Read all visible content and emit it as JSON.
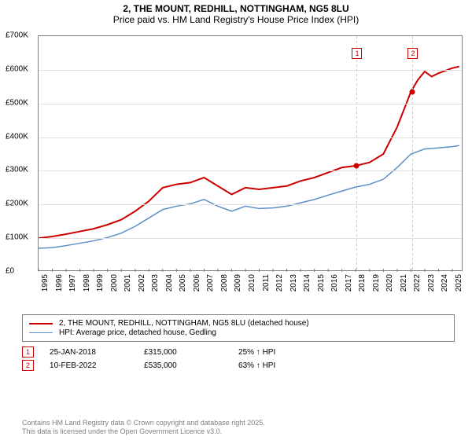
{
  "title": "2, THE MOUNT, REDHILL, NOTTINGHAM, NG5 8LU",
  "subtitle": "Price paid vs. HM Land Registry's House Price Index (HPI)",
  "chart": {
    "type": "line",
    "background_color": "#ffffff",
    "grid_color": "#e0e0e0",
    "border_color": "#808080",
    "x_years": [
      1995,
      1996,
      1997,
      1998,
      1999,
      2000,
      2001,
      2002,
      2003,
      2004,
      2005,
      2006,
      2007,
      2008,
      2009,
      2010,
      2011,
      2012,
      2013,
      2014,
      2015,
      2016,
      2017,
      2018,
      2019,
      2020,
      2021,
      2022,
      2023,
      2024,
      2025
    ],
    "xlim": [
      1995,
      2025.8
    ],
    "ylim": [
      0,
      700000
    ],
    "y_ticks": [
      0,
      100000,
      200000,
      300000,
      400000,
      500000,
      600000,
      700000
    ],
    "y_tick_labels": [
      "£0",
      "£100K",
      "£200K",
      "£300K",
      "£400K",
      "£500K",
      "£600K",
      "£700K"
    ],
    "series": [
      {
        "name": "price_paid",
        "color": "#cc0000",
        "width": 2,
        "points": [
          [
            1995,
            100000
          ],
          [
            1996,
            105000
          ],
          [
            1997,
            112000
          ],
          [
            1998,
            120000
          ],
          [
            1999,
            128000
          ],
          [
            2000,
            140000
          ],
          [
            2001,
            155000
          ],
          [
            2002,
            180000
          ],
          [
            2003,
            210000
          ],
          [
            2004,
            250000
          ],
          [
            2005,
            260000
          ],
          [
            2006,
            265000
          ],
          [
            2007,
            280000
          ],
          [
            2008,
            255000
          ],
          [
            2009,
            230000
          ],
          [
            2010,
            250000
          ],
          [
            2011,
            245000
          ],
          [
            2012,
            250000
          ],
          [
            2013,
            255000
          ],
          [
            2014,
            270000
          ],
          [
            2015,
            280000
          ],
          [
            2016,
            295000
          ],
          [
            2017,
            310000
          ],
          [
            2018,
            315000
          ],
          [
            2019,
            325000
          ],
          [
            2020,
            350000
          ],
          [
            2021,
            430000
          ],
          [
            2022,
            535000
          ],
          [
            2022.5,
            570000
          ],
          [
            2023,
            595000
          ],
          [
            2023.5,
            580000
          ],
          [
            2024,
            590000
          ],
          [
            2025,
            605000
          ],
          [
            2025.5,
            610000
          ]
        ]
      },
      {
        "name": "hpi",
        "color": "#5b8fc7",
        "width": 1.5,
        "points": [
          [
            1995,
            70000
          ],
          [
            1996,
            72000
          ],
          [
            1997,
            78000
          ],
          [
            1998,
            85000
          ],
          [
            1999,
            92000
          ],
          [
            2000,
            102000
          ],
          [
            2001,
            115000
          ],
          [
            2002,
            135000
          ],
          [
            2003,
            160000
          ],
          [
            2004,
            185000
          ],
          [
            2005,
            195000
          ],
          [
            2006,
            202000
          ],
          [
            2007,
            215000
          ],
          [
            2008,
            195000
          ],
          [
            2009,
            180000
          ],
          [
            2010,
            195000
          ],
          [
            2011,
            188000
          ],
          [
            2012,
            190000
          ],
          [
            2013,
            195000
          ],
          [
            2014,
            205000
          ],
          [
            2015,
            215000
          ],
          [
            2016,
            228000
          ],
          [
            2017,
            240000
          ],
          [
            2018,
            252000
          ],
          [
            2019,
            260000
          ],
          [
            2020,
            275000
          ],
          [
            2021,
            310000
          ],
          [
            2022,
            350000
          ],
          [
            2023,
            365000
          ],
          [
            2024,
            368000
          ],
          [
            2025,
            372000
          ],
          [
            2025.5,
            375000
          ]
        ]
      }
    ],
    "sale_markers": [
      {
        "label": "1",
        "year": 2018.07,
        "price": 315000,
        "marker_y": 15
      },
      {
        "label": "2",
        "year": 2022.12,
        "price": 535000,
        "marker_y": 15
      }
    ],
    "marker_border": "#cc0000",
    "marker_fill": "#cc0000",
    "marker_line_color": "#cccccc"
  },
  "legend": {
    "items": [
      {
        "color": "#cc0000",
        "width": 2,
        "label": "2, THE MOUNT, REDHILL, NOTTINGHAM, NG5 8LU (detached house)"
      },
      {
        "color": "#5b8fc7",
        "width": 1.5,
        "label": "HPI: Average price, detached house, Gedling"
      }
    ]
  },
  "sales": [
    {
      "badge": "1",
      "date": "25-JAN-2018",
      "price": "£315,000",
      "delta": "25% ↑ HPI"
    },
    {
      "badge": "2",
      "date": "10-FEB-2022",
      "price": "£535,000",
      "delta": "63% ↑ HPI"
    }
  ],
  "footer": {
    "line1": "Contains HM Land Registry data © Crown copyright and database right 2025.",
    "line2": "This data is licensed under the Open Government Licence v3.0."
  },
  "fonts": {
    "title_size": 12,
    "axis_size": 10,
    "legend_size": 10,
    "footer_size": 9
  }
}
